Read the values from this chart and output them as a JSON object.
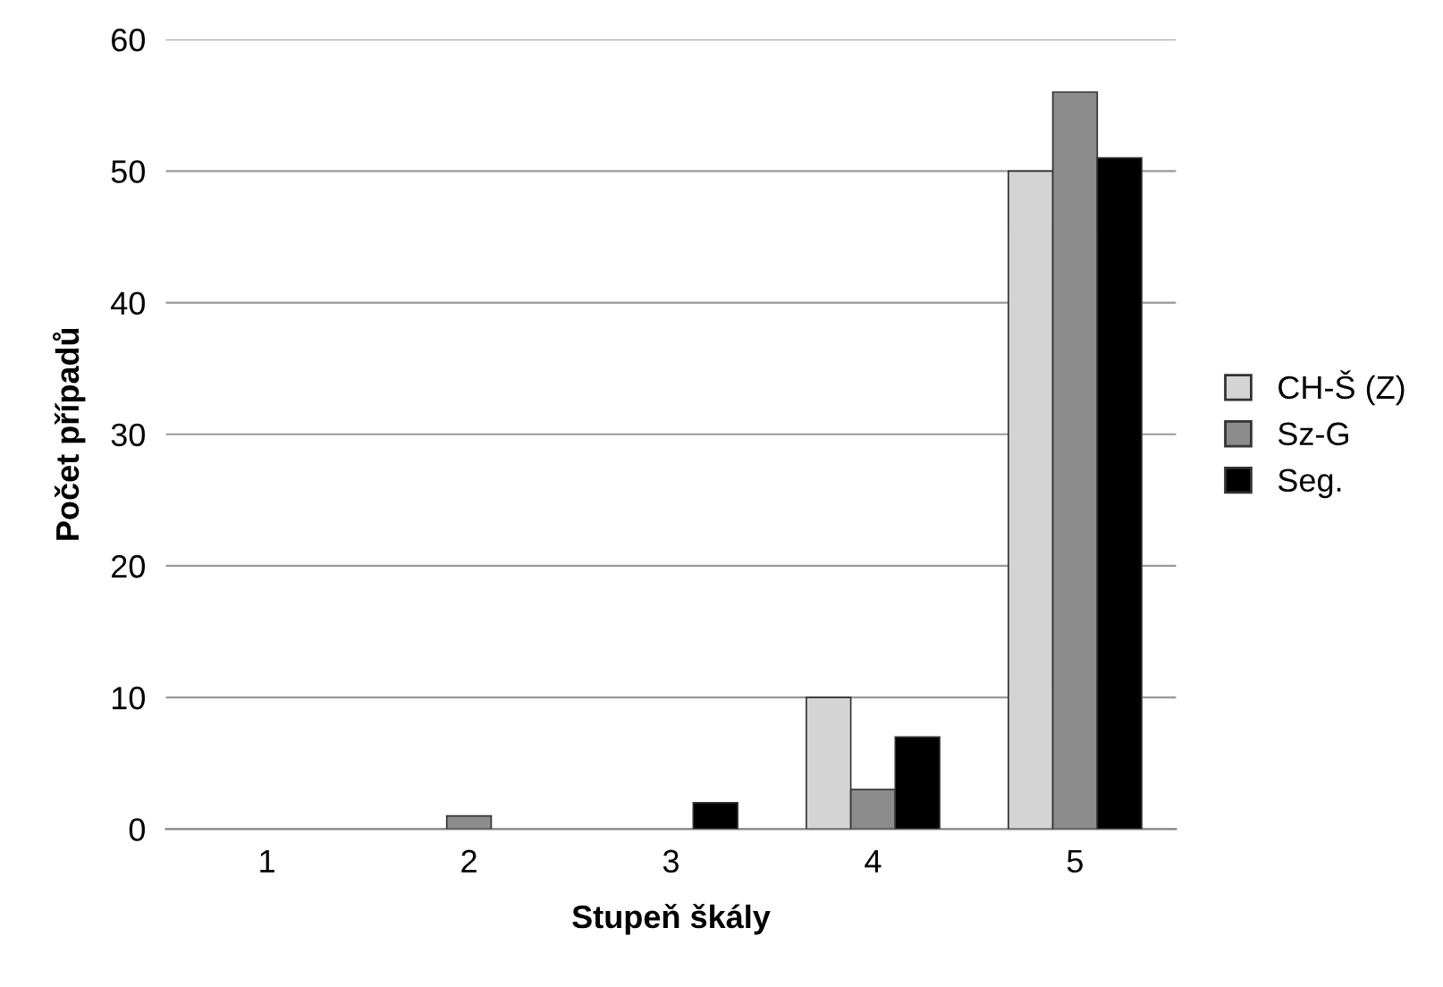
{
  "chart_data": {
    "type": "bar",
    "xlabel": "Stupeň škály",
    "ylabel": "Počet případů",
    "categories": [
      "1",
      "2",
      "3",
      "4",
      "5"
    ],
    "series": [
      {
        "name": "CH-Š (Z)",
        "color": "#d4d4d4",
        "values": [
          0,
          0,
          0,
          10,
          50
        ]
      },
      {
        "name": "Sz-G",
        "color": "#8c8c8c",
        "values": [
          0,
          1,
          0,
          3,
          56
        ]
      },
      {
        "name": "Seg.",
        "color": "#000000",
        "values": [
          0,
          0,
          2,
          7,
          51
        ]
      }
    ],
    "ylim": [
      0,
      60
    ],
    "yticks": [
      0,
      10,
      20,
      30,
      40,
      50,
      60
    ],
    "grid": "y",
    "legend": "right"
  }
}
